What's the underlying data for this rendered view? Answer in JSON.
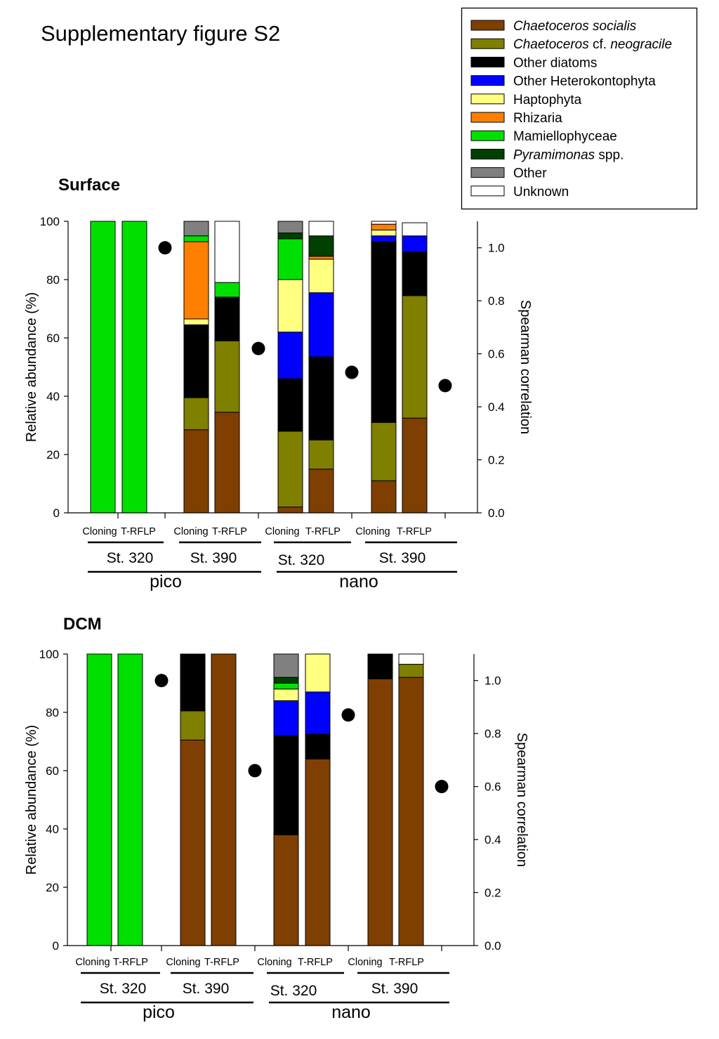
{
  "figure_title": "Supplementary figure S2",
  "legend": [
    {
      "label_parts": [
        {
          "text": "Chaetoceros socialis",
          "italic": true
        }
      ],
      "color": "#7f3f00"
    },
    {
      "label_parts": [
        {
          "text": "Chaetoceros",
          "italic": true
        },
        {
          "text": " cf. ",
          "italic": false
        },
        {
          "text": "neogracile",
          "italic": true
        }
      ],
      "color": "#7f7f00"
    },
    {
      "label_parts": [
        {
          "text": "Other diatoms",
          "italic": false
        }
      ],
      "color": "#000000"
    },
    {
      "label_parts": [
        {
          "text": "Other Heterokontophyta",
          "italic": false
        }
      ],
      "color": "#0000ff"
    },
    {
      "label_parts": [
        {
          "text": "Haptophyta",
          "italic": false
        }
      ],
      "color": "#ffff80"
    },
    {
      "label_parts": [
        {
          "text": "Rhizaria",
          "italic": false
        }
      ],
      "color": "#ff7f00"
    },
    {
      "label_parts": [
        {
          "text": "Mamiellophyceae",
          "italic": false
        }
      ],
      "color": "#00e000"
    },
    {
      "label_parts": [
        {
          "text": "Pyramimonas",
          "italic": true
        },
        {
          "text": " spp.",
          "italic": false
        }
      ],
      "color": "#004000"
    },
    {
      "label_parts": [
        {
          "text": "Other",
          "italic": false
        }
      ],
      "color": "#808080"
    },
    {
      "label_parts": [
        {
          "text": "Unknown",
          "italic": false
        }
      ],
      "color": "#ffffff"
    }
  ],
  "chart_data": [
    {
      "type": "stacked-bar+scatter",
      "title": "Surface",
      "ylabel": "Relative abundance (%)",
      "ylabel_right": "Spearman correlation",
      "ylim": [
        0,
        100
      ],
      "yticks": [
        0,
        20,
        40,
        60,
        80,
        100
      ],
      "ylim_right": [
        0,
        1.1
      ],
      "yticks_right": [
        "0.0",
        "0.2",
        "0.4",
        "0.6",
        "0.8",
        "1.0"
      ],
      "categories": [
        "Cloning",
        "T-RFLP",
        "Cloning",
        "T-RFLP",
        "Cloning",
        "T-RFLP",
        "Cloning",
        "T-RFLP"
      ],
      "stations": [
        "St. 320",
        "St. 390",
        "St. 320",
        "St. 390"
      ],
      "size_fractions": [
        "pico",
        "nano"
      ],
      "series": [
        {
          "name": "Chaetoceros socialis",
          "values": [
            0,
            0,
            28.5,
            34.5,
            2,
            15,
            11,
            32.5
          ]
        },
        {
          "name": "Chaetoceros cf. neogracile",
          "values": [
            0,
            0,
            11,
            24.5,
            26,
            10,
            20,
            42
          ]
        },
        {
          "name": "Other diatoms",
          "values": [
            0,
            0,
            25,
            15,
            18,
            28.5,
            62,
            15
          ]
        },
        {
          "name": "Other Heterokontophyta",
          "values": [
            0,
            0,
            0,
            0,
            16,
            22,
            2,
            5.5
          ]
        },
        {
          "name": "Haptophyta",
          "values": [
            0,
            0,
            2,
            0,
            18,
            11.5,
            2,
            0
          ]
        },
        {
          "name": "Rhizaria",
          "values": [
            0,
            0,
            26.5,
            0,
            0,
            1,
            2,
            0
          ]
        },
        {
          "name": "Mamiellophyceae",
          "values": [
            100,
            100,
            2,
            5,
            14,
            0,
            0,
            0
          ]
        },
        {
          "name": "Pyramimonas spp.",
          "values": [
            0,
            0,
            0,
            0,
            2,
            7,
            0,
            0
          ]
        },
        {
          "name": "Other",
          "values": [
            0,
            0,
            5,
            0,
            4,
            0,
            0,
            0
          ]
        },
        {
          "name": "Unknown",
          "values": [
            0,
            0,
            0,
            21,
            0,
            5,
            1,
            4.5
          ]
        }
      ],
      "spearman": [
        1.0,
        0.62,
        0.53,
        0.48
      ]
    },
    {
      "type": "stacked-bar+scatter",
      "title": "DCM",
      "ylabel": "Relative abundance (%)",
      "ylabel_right": "Spearman correlation",
      "ylim": [
        0,
        100
      ],
      "yticks": [
        0,
        20,
        40,
        60,
        80,
        100
      ],
      "ylim_right": [
        0,
        1.1
      ],
      "yticks_right": [
        "0.0",
        "0.2",
        "0.4",
        "0.6",
        "0.8",
        "1.0"
      ],
      "categories": [
        "Cloning",
        "T-RFLP",
        "Cloning",
        "T-RFLP",
        "Cloning",
        "T-RFLP",
        "Cloning",
        "T-RFLP"
      ],
      "stations": [
        "St. 320",
        "St. 390",
        "St. 320",
        "St. 390"
      ],
      "size_fractions": [
        "pico",
        "nano"
      ],
      "series": [
        {
          "name": "Chaetoceros socialis",
          "values": [
            0,
            0,
            70.5,
            100,
            38,
            64,
            91.5,
            92
          ]
        },
        {
          "name": "Chaetoceros cf. neogracile",
          "values": [
            0,
            0,
            10,
            0,
            0,
            0,
            0,
            4.5
          ]
        },
        {
          "name": "Other diatoms",
          "values": [
            0,
            0,
            19.5,
            0,
            34,
            8.5,
            8.5,
            0
          ]
        },
        {
          "name": "Other Heterokontophyta",
          "values": [
            0,
            0,
            0,
            0,
            12,
            14.5,
            0,
            0
          ]
        },
        {
          "name": "Haptophyta",
          "values": [
            0,
            0,
            0,
            0,
            4,
            13,
            0,
            0
          ]
        },
        {
          "name": "Rhizaria",
          "values": [
            0,
            0,
            0,
            0,
            0,
            0,
            0,
            0
          ]
        },
        {
          "name": "Mamiellophyceae",
          "values": [
            100,
            100,
            0,
            0,
            2,
            0,
            0,
            0
          ]
        },
        {
          "name": "Pyramimonas spp.",
          "values": [
            0,
            0,
            0,
            0,
            2,
            0,
            0,
            0
          ]
        },
        {
          "name": "Other",
          "values": [
            0,
            0,
            0,
            0,
            8,
            0,
            0,
            0
          ]
        },
        {
          "name": "Unknown",
          "values": [
            0,
            0,
            0,
            0,
            0,
            0,
            0,
            3.5
          ]
        }
      ],
      "spearman": [
        1.0,
        0.66,
        0.87,
        0.6
      ]
    }
  ]
}
